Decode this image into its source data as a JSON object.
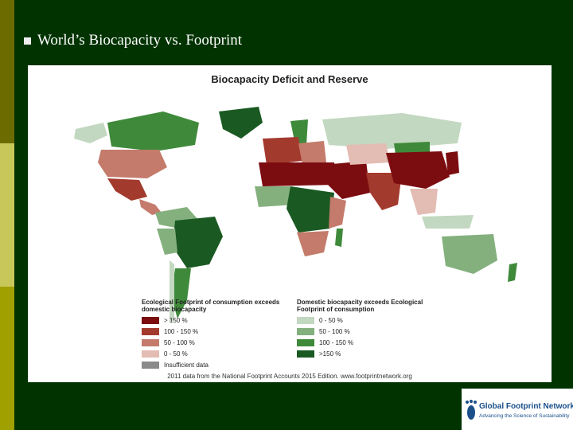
{
  "slide": {
    "title": "World’s Biocapacity vs. Footprint"
  },
  "map": {
    "title": "Biocapacity Deficit and Reserve",
    "credit": "2011 data from the National Footprint Accounts 2015 Edition. www.footprintnetwork.org"
  },
  "legend": {
    "deficit": {
      "heading": "Ecological Footprint of consumption exceeds domestic biocapacity",
      "items": [
        {
          "label": "> 150 %",
          "color": "#7b0c10"
        },
        {
          "label": "100 - 150 %",
          "color": "#a33a2e"
        },
        {
          "label": "50 - 100 %",
          "color": "#c47b6b"
        },
        {
          "label": "0 - 50 %",
          "color": "#e3bcb3"
        },
        {
          "label": "Insufficient data",
          "color": "#8a8a8a"
        }
      ]
    },
    "reserve": {
      "heading": "Domestic biocapacity exceeds Ecological Footprint of consumption",
      "items": [
        {
          "label": "0 - 50 %",
          "color": "#c3d8c0"
        },
        {
          "label": "50 - 100 %",
          "color": "#84b07e"
        },
        {
          "label": "100 - 150 %",
          "color": "#3f8a3a"
        },
        {
          "label": ">150 %",
          "color": "#1a5a22"
        }
      ]
    }
  },
  "logo": {
    "name": "Global Footprint Network",
    "tagline": "Advancing the Science of Sustainability"
  }
}
